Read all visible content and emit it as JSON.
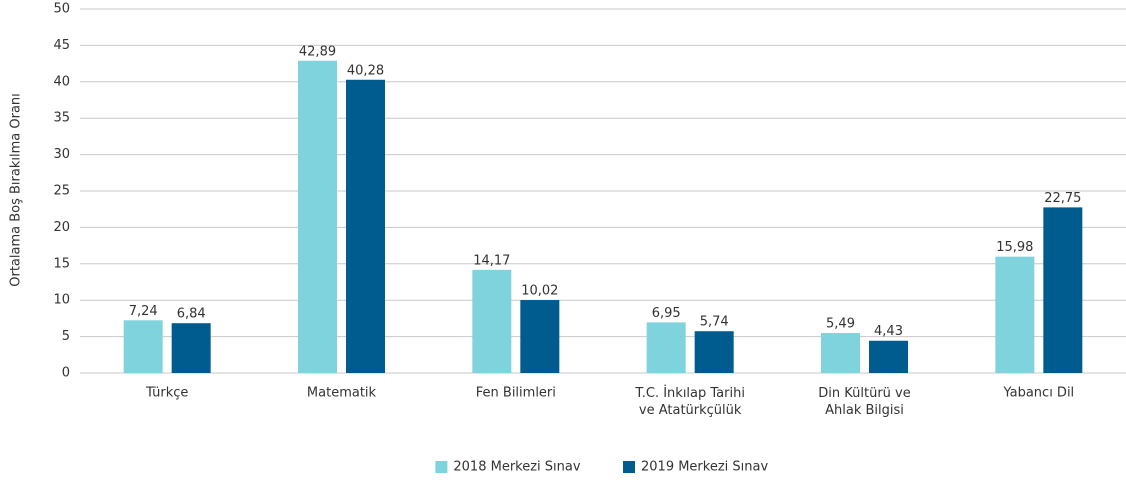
{
  "chart_data": {
    "type": "bar",
    "y_label": "Ortalama Boş Bırakılma Oranı",
    "categories": [
      "Türkçe",
      "Matematik",
      "Fen Bilimleri",
      "T.C. İnkılap Tarihi\nve Atatürkçülük",
      "Din Kültürü ve\nAhlak Bilgisi",
      "Yabancı Dil"
    ],
    "series": [
      {
        "name": "2018 Merkezi Sınav",
        "color": "#7fd3dc",
        "values": [
          7.24,
          42.89,
          14.17,
          6.95,
          5.49,
          15.98
        ],
        "value_labels": [
          "7,24",
          "42,89",
          "14,17",
          "6,95",
          "5,49",
          "15,98"
        ]
      },
      {
        "name": "2019 Merkezi Sınav",
        "color": "#005b8f",
        "values": [
          6.84,
          40.28,
          10.02,
          5.74,
          4.43,
          22.75
        ],
        "value_labels": [
          "6,84",
          "40,28",
          "10,02",
          "5,74",
          "4,43",
          "22,75"
        ]
      }
    ],
    "ylim": [
      0,
      50
    ],
    "yticks": [
      0,
      5,
      10,
      15,
      20,
      25,
      30,
      35,
      40,
      45,
      50
    ],
    "grid": true,
    "legend": "bottom"
  }
}
